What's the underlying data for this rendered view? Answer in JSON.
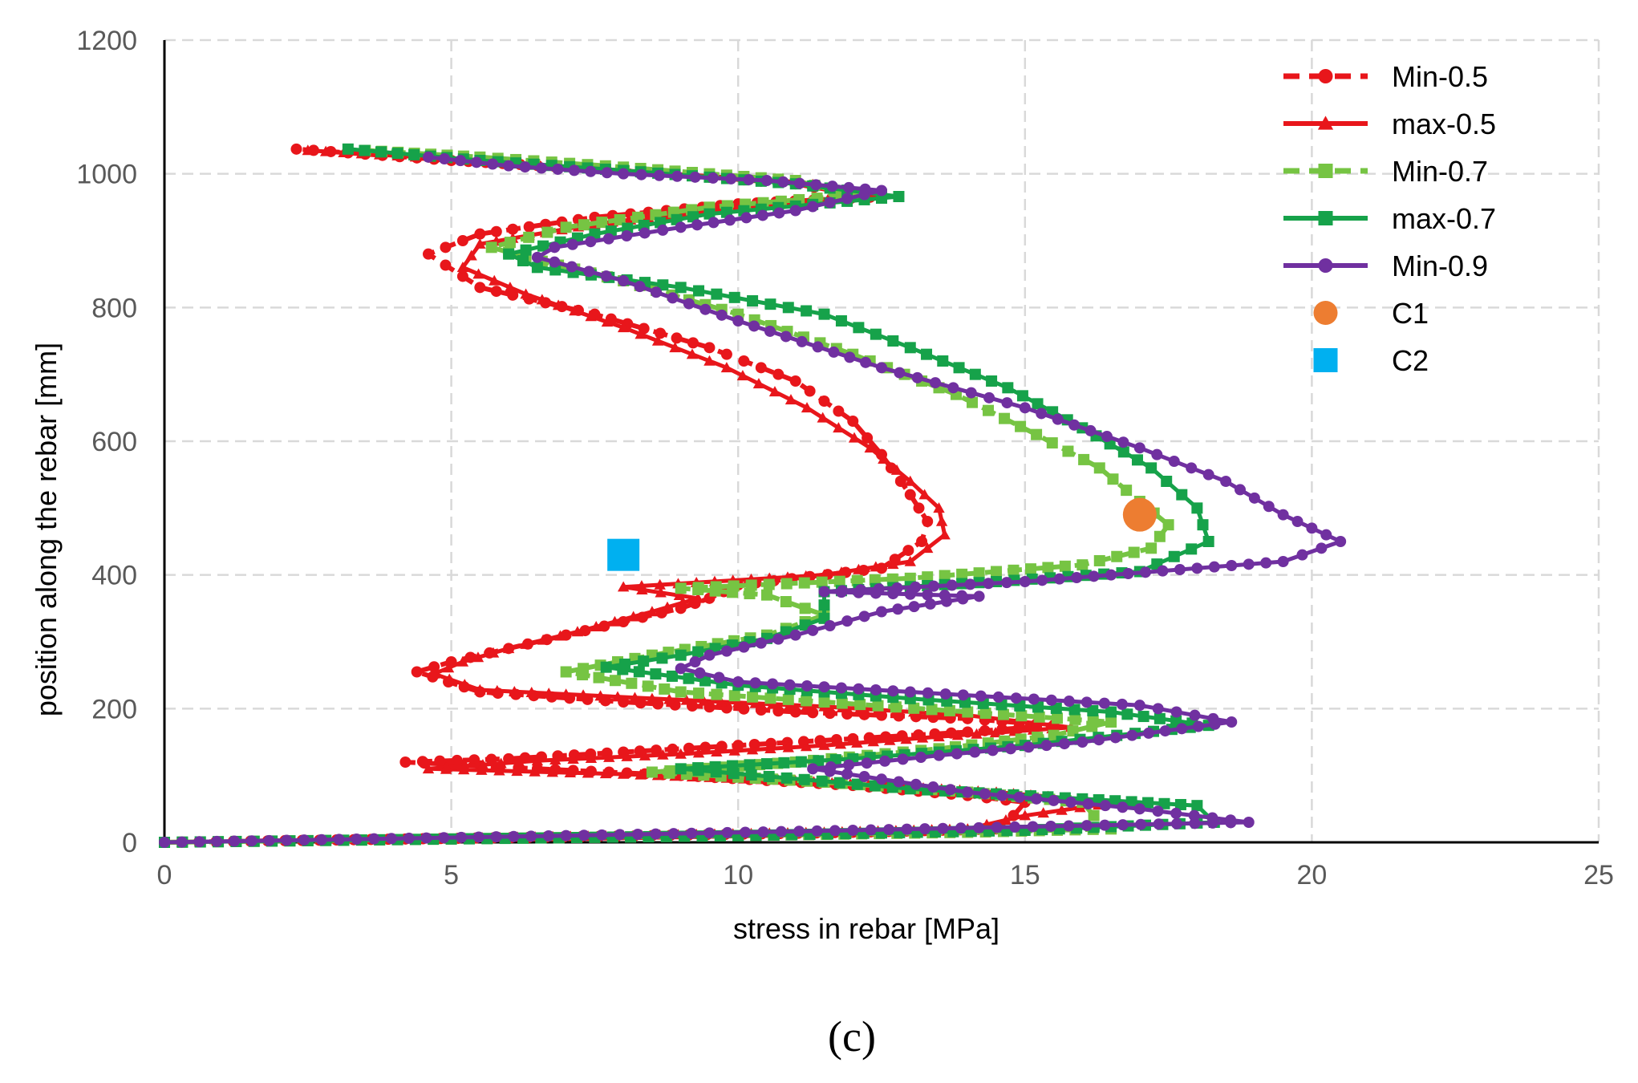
{
  "chart_data": {
    "type": "line",
    "title": "",
    "panel_label": "(c)",
    "xlabel": "stress in rebar [MPa]",
    "ylabel": "position along the rebar [mm]",
    "xlim": [
      0,
      25
    ],
    "ylim": [
      0,
      1200
    ],
    "x_ticks": [
      0,
      5,
      10,
      15,
      20,
      25
    ],
    "y_ticks": [
      0,
      200,
      400,
      600,
      800,
      1000,
      1200
    ],
    "grid": true,
    "grid_style": "dashed",
    "legend_position": "top-right",
    "series": [
      {
        "name": "Min-0.5",
        "color": "#e8161b",
        "line_style": "dashed",
        "marker": "circle",
        "points": [
          [
            0,
            0
          ],
          [
            4.2,
            5
          ],
          [
            8.5,
            10
          ],
          [
            12,
            15
          ],
          [
            14.5,
            20
          ],
          [
            14.8,
            40
          ],
          [
            15,
            60
          ],
          [
            14,
            70
          ],
          [
            12,
            85
          ],
          [
            9,
            100
          ],
          [
            6.5,
            110
          ],
          [
            4.2,
            120
          ],
          [
            6,
            125
          ],
          [
            8,
            135
          ],
          [
            10,
            145
          ],
          [
            12,
            155
          ],
          [
            14,
            165
          ],
          [
            15.5,
            175
          ],
          [
            14,
            185
          ],
          [
            11,
            195
          ],
          [
            8,
            210
          ],
          [
            5.5,
            225
          ],
          [
            4.4,
            255
          ],
          [
            5,
            270
          ],
          [
            6,
            290
          ],
          [
            7,
            310
          ],
          [
            8,
            330
          ],
          [
            9,
            350
          ],
          [
            9.5,
            365
          ],
          [
            10,
            385
          ],
          [
            12.5,
            410
          ],
          [
            13.2,
            450
          ],
          [
            13.3,
            480
          ],
          [
            13,
            520
          ],
          [
            12.5,
            580
          ],
          [
            12,
            630
          ],
          [
            11,
            690
          ],
          [
            9.5,
            740
          ],
          [
            7.5,
            790
          ],
          [
            5.5,
            830
          ],
          [
            4.6,
            880
          ],
          [
            5.5,
            910
          ],
          [
            7.5,
            935
          ],
          [
            10,
            955
          ],
          [
            12.3,
            965
          ],
          [
            11,
            985
          ],
          [
            8,
            1005
          ],
          [
            5,
            1020
          ],
          [
            2.3,
            1037
          ]
        ]
      },
      {
        "name": "max-0.5",
        "color": "#e8161b",
        "line_style": "solid",
        "marker": "triangle",
        "points": [
          [
            0,
            0
          ],
          [
            4,
            5
          ],
          [
            8,
            10
          ],
          [
            11.5,
            15
          ],
          [
            14,
            20
          ],
          [
            15,
            40
          ],
          [
            16.6,
            60
          ],
          [
            14.5,
            75
          ],
          [
            11,
            92
          ],
          [
            8,
            102
          ],
          [
            4.6,
            110
          ],
          [
            6.5,
            122
          ],
          [
            9,
            132
          ],
          [
            11.5,
            145
          ],
          [
            13.5,
            158
          ],
          [
            15.8,
            172
          ],
          [
            14,
            190
          ],
          [
            11.5,
            203
          ],
          [
            8.5,
            215
          ],
          [
            5.5,
            228
          ],
          [
            4.7,
            252
          ],
          [
            5.2,
            270
          ],
          [
            6,
            290
          ],
          [
            7.2,
            315
          ],
          [
            8.5,
            345
          ],
          [
            9.3,
            365
          ],
          [
            8,
            382
          ],
          [
            11.5,
            400
          ],
          [
            13,
            420
          ],
          [
            13.6,
            460
          ],
          [
            13.5,
            500
          ],
          [
            13,
            540
          ],
          [
            12.3,
            590
          ],
          [
            11.2,
            650
          ],
          [
            9.8,
            710
          ],
          [
            8,
            770
          ],
          [
            6.3,
            820
          ],
          [
            5.2,
            860
          ],
          [
            5.5,
            895
          ],
          [
            7.5,
            925
          ],
          [
            10,
            950
          ],
          [
            12.5,
            968
          ],
          [
            11,
            988
          ],
          [
            8,
            1005
          ],
          [
            5,
            1022
          ],
          [
            2.5,
            1035
          ]
        ]
      },
      {
        "name": "Min-0.7",
        "color": "#76c443",
        "line_style": "dashed",
        "marker": "square",
        "points": [
          [
            0,
            0
          ],
          [
            5,
            5
          ],
          [
            10,
            10
          ],
          [
            14,
            15
          ],
          [
            16.5,
            20
          ],
          [
            16.2,
            40
          ],
          [
            16,
            60
          ],
          [
            14,
            75
          ],
          [
            11.5,
            90
          ],
          [
            8.5,
            105
          ],
          [
            11,
            120
          ],
          [
            13.5,
            140
          ],
          [
            15.5,
            160
          ],
          [
            16.5,
            180
          ],
          [
            14,
            195
          ],
          [
            11.5,
            210
          ],
          [
            9,
            225
          ],
          [
            7,
            255
          ],
          [
            8.5,
            280
          ],
          [
            10.5,
            310
          ],
          [
            11.5,
            340
          ],
          [
            10.5,
            370
          ],
          [
            9,
            380
          ],
          [
            13,
            395
          ],
          [
            16,
            415
          ],
          [
            17.2,
            440
          ],
          [
            17.5,
            475
          ],
          [
            17,
            510
          ],
          [
            16.3,
            560
          ],
          [
            15.2,
            610
          ],
          [
            13.8,
            670
          ],
          [
            12,
            730
          ],
          [
            10,
            790
          ],
          [
            8,
            840
          ],
          [
            6.3,
            875
          ],
          [
            5.7,
            890
          ],
          [
            7,
            920
          ],
          [
            9.5,
            950
          ],
          [
            12,
            968
          ],
          [
            11,
            990
          ],
          [
            8,
            1010
          ],
          [
            5.5,
            1025
          ],
          [
            3.5,
            1035
          ]
        ]
      },
      {
        "name": "max-0.7",
        "color": "#16a24a",
        "line_style": "solid",
        "marker": "square",
        "points": [
          [
            0,
            0
          ],
          [
            5,
            5
          ],
          [
            10,
            10
          ],
          [
            15,
            18
          ],
          [
            18.3,
            30
          ],
          [
            18,
            55
          ],
          [
            16,
            65
          ],
          [
            13,
            80
          ],
          [
            9,
            110
          ],
          [
            12,
            125
          ],
          [
            15,
            145
          ],
          [
            18.2,
            175
          ],
          [
            16.5,
            195
          ],
          [
            13,
            215
          ],
          [
            10,
            235
          ],
          [
            7.7,
            262
          ],
          [
            9,
            280
          ],
          [
            10.5,
            305
          ],
          [
            11.5,
            335
          ],
          [
            11.5,
            375
          ],
          [
            14.5,
            390
          ],
          [
            17,
            405
          ],
          [
            18.2,
            450
          ],
          [
            18,
            500
          ],
          [
            17.2,
            560
          ],
          [
            16,
            620
          ],
          [
            14.7,
            680
          ],
          [
            13,
            740
          ],
          [
            11.5,
            790
          ],
          [
            9,
            830
          ],
          [
            6.5,
            860
          ],
          [
            6,
            880
          ],
          [
            7.5,
            910
          ],
          [
            9.5,
            940
          ],
          [
            12.8,
            966
          ],
          [
            11,
            985
          ],
          [
            8,
            1005
          ],
          [
            5.5,
            1020
          ],
          [
            3.2,
            1037
          ]
        ]
      },
      {
        "name": "Min-0.9",
        "color": "#7030a0",
        "line_style": "solid",
        "marker": "circle",
        "points": [
          [
            0,
            0
          ],
          [
            7,
            10
          ],
          [
            12,
            18
          ],
          [
            18.9,
            30
          ],
          [
            17,
            50
          ],
          [
            14,
            75
          ],
          [
            11.3,
            110
          ],
          [
            13.5,
            130
          ],
          [
            16,
            150
          ],
          [
            18.6,
            180
          ],
          [
            17,
            205
          ],
          [
            13,
            225
          ],
          [
            10,
            240
          ],
          [
            9,
            260
          ],
          [
            9.5,
            280
          ],
          [
            11,
            310
          ],
          [
            12.5,
            345
          ],
          [
            14.2,
            368
          ],
          [
            11.5,
            375
          ],
          [
            15,
            390
          ],
          [
            19.5,
            420
          ],
          [
            20.5,
            450
          ],
          [
            19.5,
            490
          ],
          [
            18.5,
            540
          ],
          [
            17,
            590
          ],
          [
            15,
            650
          ],
          [
            12.5,
            710
          ],
          [
            10,
            780
          ],
          [
            8,
            840
          ],
          [
            6.5,
            875
          ],
          [
            6.8,
            890
          ],
          [
            9,
            920
          ],
          [
            11,
            945
          ],
          [
            12.5,
            975
          ],
          [
            10.5,
            990
          ],
          [
            8,
            1000
          ],
          [
            6,
            1012
          ],
          [
            4.6,
            1025
          ]
        ]
      },
      {
        "name": "C1",
        "color": "#ed7d31",
        "marker": "circle",
        "points": [
          [
            17,
            490
          ]
        ]
      },
      {
        "name": "C2",
        "color": "#00b0f0",
        "marker": "square",
        "points": [
          [
            8,
            430
          ]
        ]
      }
    ]
  }
}
